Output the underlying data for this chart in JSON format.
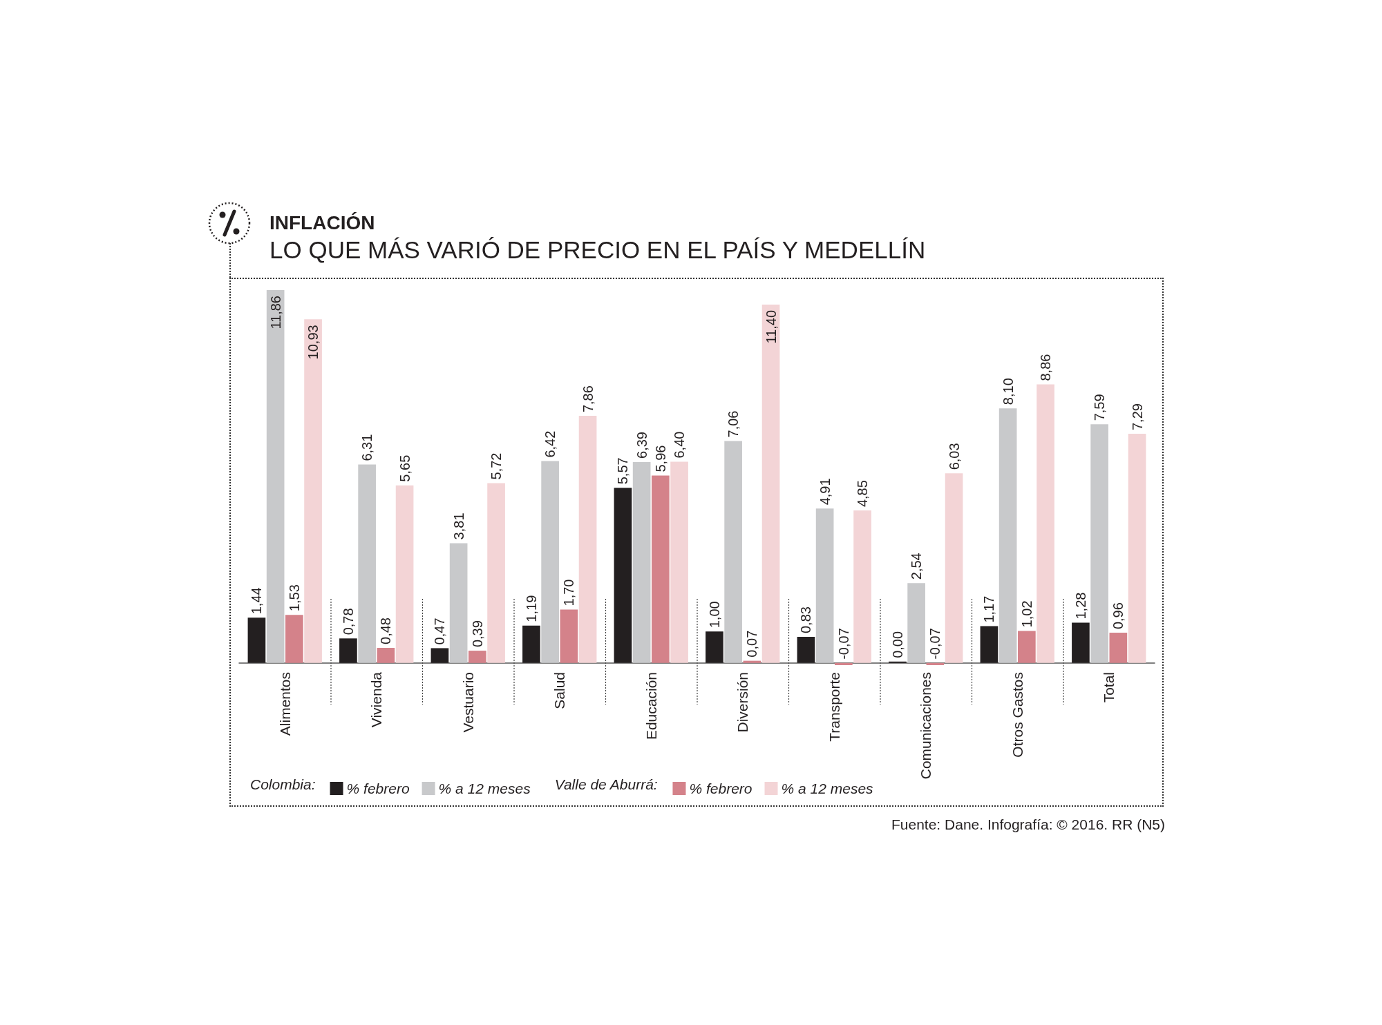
{
  "chart_data": {
    "type": "bar",
    "title": "INFLACIÓN",
    "subtitle": "LO QUE MÁS VARIÓ DE PRECIO EN EL PAÍS Y MEDELLÍN",
    "categories": [
      "Alimentos",
      "Vivienda",
      "Vestuario",
      "Salud",
      "Educación",
      "Diversión",
      "Transporte",
      "Comunicaciones",
      "Otros Gastos",
      "Total"
    ],
    "series": [
      {
        "name": "% febrero",
        "color": "#231f20",
        "values": [
          1.44,
          0.78,
          0.47,
          1.19,
          5.57,
          1.0,
          0.83,
          0.0,
          1.17,
          1.28
        ],
        "value_labels": [
          "1,44",
          "0,78",
          "0,47",
          "1,19",
          "5,57",
          "1,00",
          "0,83",
          "0,00",
          "1,17",
          "1,28"
        ]
      },
      {
        "name": "% a 12 meses",
        "color": "#c8c9cb",
        "values": [
          11.86,
          6.31,
          3.81,
          6.42,
          6.39,
          7.06,
          4.91,
          2.54,
          8.1,
          7.59
        ],
        "value_labels": [
          "11,86",
          "6,31",
          "3,81",
          "6,42",
          "6,39",
          "7,06",
          "4,91",
          "2,54",
          "8,10",
          "7,59"
        ]
      },
      {
        "name": "% febrero",
        "color": "#d4828a",
        "values": [
          1.53,
          0.48,
          0.39,
          1.7,
          5.96,
          0.07,
          -0.07,
          -0.07,
          1.02,
          0.96
        ],
        "value_labels": [
          "1,53",
          "0,48",
          "0,39",
          "1,70",
          "5,96",
          "0,07",
          "-0,07",
          "-0,07",
          "1,02",
          "0,96"
        ]
      },
      {
        "name": "% a 12 meses",
        "color": "#f3d4d6",
        "values": [
          10.93,
          5.65,
          5.72,
          7.86,
          6.4,
          11.4,
          4.85,
          6.03,
          8.86,
          7.29
        ],
        "value_labels": [
          "10,93",
          "5,65",
          "5,72",
          "7,86",
          "6,40",
          "11,40",
          "4,85",
          "6,03",
          "8,86",
          "7,29"
        ]
      }
    ],
    "annotations": [
      "Colombia:",
      "Valle de Aburrá:",
      "Fuente: Dane. Infografía: © 2016. RR (N5)"
    ],
    "legend": "bottom",
    "tick_labels": "x"
  }
}
